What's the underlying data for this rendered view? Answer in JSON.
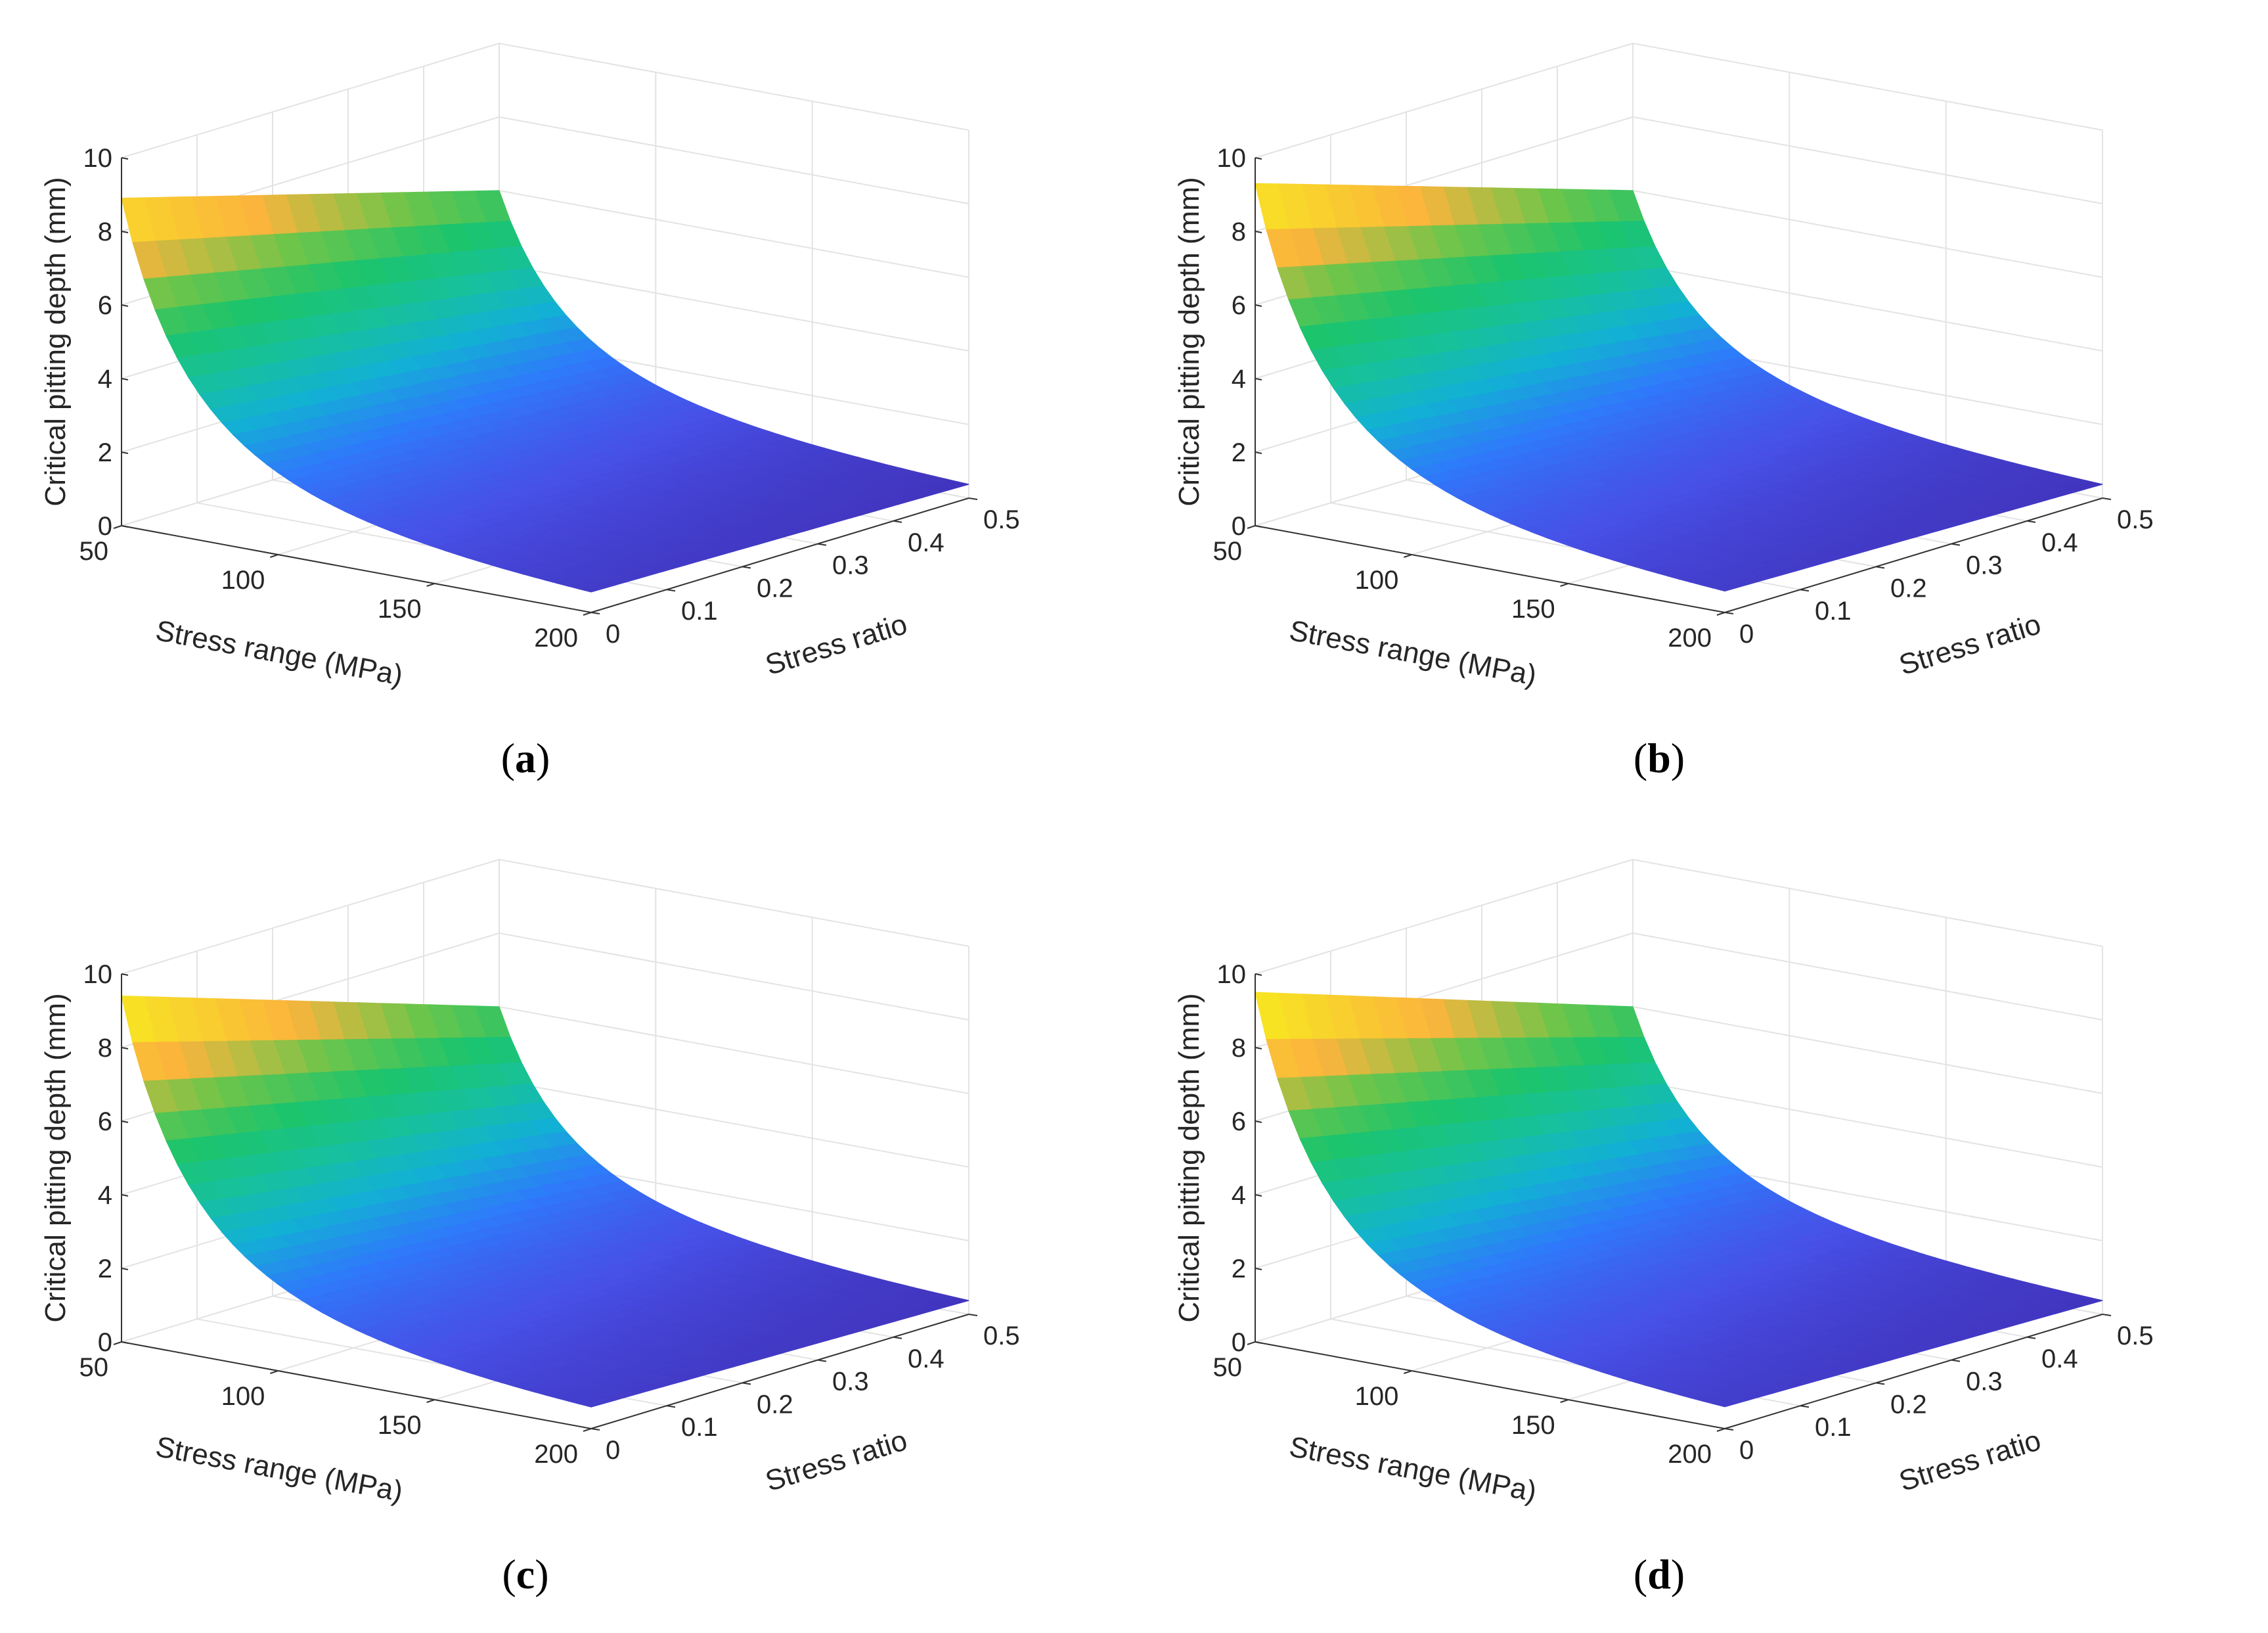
{
  "figure": {
    "palette": [
      "#3e26a8",
      "#4750e7",
      "#2f79fb",
      "#12b1d4",
      "#17c19a",
      "#1cc46c",
      "#6ec54a",
      "#fbb43c",
      "#f8d72a",
      "#f9fb15"
    ]
  },
  "chart_data": [
    {
      "type": "surface",
      "panel": "a",
      "caption": {
        "open": "(",
        "letter": "a",
        "close": ")"
      },
      "xlabel": "Stress range (MPa)",
      "ylabel": "Stress ratio",
      "zlabel": "Critical pitting depth (mm)",
      "x_ticks": [
        "50",
        "100",
        "150",
        "200"
      ],
      "y_ticks": [
        "0",
        "0.1",
        "0.2",
        "0.3",
        "0.4",
        "0.5"
      ],
      "z_ticks": [
        "0",
        "2",
        "4",
        "6",
        "8",
        "10"
      ],
      "xlim": [
        50,
        200
      ],
      "ylim": [
        0,
        0.5
      ],
      "zlim": [
        0,
        10
      ],
      "x": [
        50,
        200
      ],
      "y": [
        0,
        0.5
      ],
      "z_at_stress_range_50": {
        "y0": 8.9,
        "y05": 6.0
      },
      "surface_model": "z = z(50, y) * (50 / x)^2",
      "colormap": "parula"
    },
    {
      "type": "surface",
      "panel": "b",
      "caption": {
        "open": "(",
        "letter": "b",
        "close": ")"
      },
      "xlabel": "Stress range (MPa)",
      "ylabel": "Stress ratio",
      "zlabel": "Critical pitting depth (mm)",
      "x_ticks": [
        "50",
        "100",
        "150",
        "200"
      ],
      "y_ticks": [
        "0",
        "0.1",
        "0.2",
        "0.3",
        "0.4",
        "0.5"
      ],
      "z_ticks": [
        "0",
        "2",
        "4",
        "6",
        "8",
        "10"
      ],
      "xlim": [
        50,
        200
      ],
      "ylim": [
        0,
        0.5
      ],
      "zlim": [
        0,
        10
      ],
      "x": [
        50,
        200
      ],
      "y": [
        0,
        0.5
      ],
      "z_at_stress_range_50": {
        "y0": 9.3,
        "y05": 6.0
      },
      "surface_model": "z = z(50, y) * (50 / x)^2",
      "colormap": "parula"
    },
    {
      "type": "surface",
      "panel": "c",
      "caption": {
        "open": "(",
        "letter": "c",
        "close": ")"
      },
      "xlabel": "Stress range (MPa)",
      "ylabel": "Stress ratio",
      "zlabel": "Critical pitting depth (mm)",
      "x_ticks": [
        "50",
        "100",
        "150",
        "200"
      ],
      "y_ticks": [
        "0",
        "0.1",
        "0.2",
        "0.3",
        "0.4",
        "0.5"
      ],
      "z_ticks": [
        "0",
        "2",
        "4",
        "6",
        "8",
        "10"
      ],
      "xlim": [
        50,
        200
      ],
      "ylim": [
        0,
        0.5
      ],
      "zlim": [
        0,
        10
      ],
      "x": [
        50,
        200
      ],
      "y": [
        0,
        0.5
      ],
      "z_at_stress_range_50": {
        "y0": 9.4,
        "y05": 6.0
      },
      "surface_model": "z = z(50, y) * (50 / x)^2",
      "colormap": "parula"
    },
    {
      "type": "surface",
      "panel": "d",
      "caption": {
        "open": "(",
        "letter": "d",
        "close": ")"
      },
      "xlabel": "Stress range (MPa)",
      "ylabel": "Stress ratio",
      "zlabel": "Critical pitting depth (mm)",
      "x_ticks": [
        "50",
        "100",
        "150",
        "200"
      ],
      "y_ticks": [
        "0",
        "0.1",
        "0.2",
        "0.3",
        "0.4",
        "0.5"
      ],
      "z_ticks": [
        "0",
        "2",
        "4",
        "6",
        "8",
        "10"
      ],
      "xlim": [
        50,
        200
      ],
      "ylim": [
        0,
        0.5
      ],
      "zlim": [
        0,
        10
      ],
      "x": [
        50,
        200
      ],
      "y": [
        0,
        0.5
      ],
      "z_at_stress_range_50": {
        "y0": 9.5,
        "y05": 6.0
      },
      "surface_model": "z = z(50, y) * (50 / x)^2",
      "colormap": "parula"
    }
  ]
}
